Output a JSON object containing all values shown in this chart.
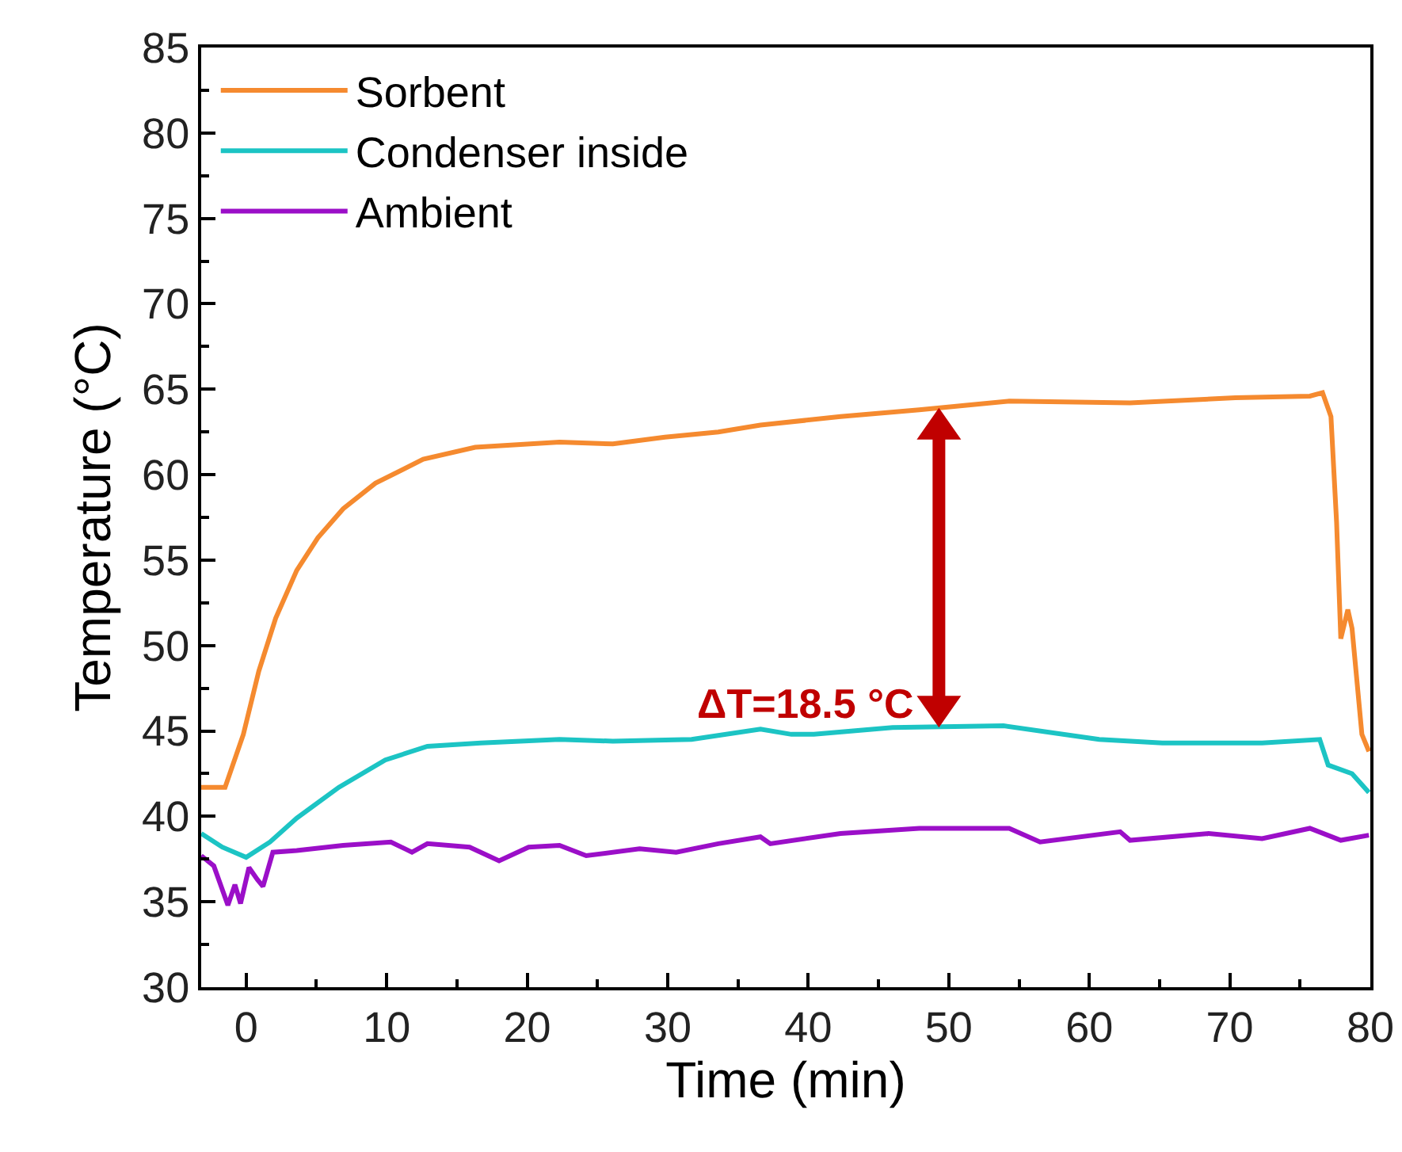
{
  "chart_data": {
    "type": "line",
    "xlabel": "Time (min)",
    "ylabel": "Temperature (°C)",
    "xlim": [
      -3.2,
      80
    ],
    "xticks": [
      0,
      10,
      20,
      30,
      40,
      50,
      60,
      70,
      80
    ],
    "ylim": [
      30,
      85
    ],
    "yticks": [
      30,
      35,
      40,
      45,
      50,
      55,
      60,
      65,
      70,
      75,
      80,
      85
    ],
    "grid": false,
    "legend": "top left",
    "marker": "none",
    "line_style": "solid",
    "annotations": [
      {
        "text": "ΔT=18.5 °C",
        "x": 49.3,
        "y": 45.2
      }
    ],
    "series": [
      {
        "name": "Sorbent",
        "color": "#f58a2f",
        "x": [
          -3.2,
          -1.5,
          -0.2,
          0.9,
          2.1,
          3.6,
          5.1,
          6.9,
          9.2,
          12.6,
          16.3,
          22.3,
          26.1,
          29.8,
          33.6,
          36.6,
          42.3,
          47.9,
          54.3,
          62.9,
          70.4,
          75.7,
          76.6,
          77.2,
          77.6,
          77.9,
          78.4,
          78.7,
          79.4,
          79.9
        ],
        "values": [
          41.7,
          41.7,
          44.8,
          48.5,
          51.6,
          54.4,
          56.3,
          58.0,
          59.5,
          60.9,
          61.6,
          61.9,
          61.8,
          62.2,
          62.5,
          62.9,
          63.4,
          63.8,
          64.3,
          64.2,
          64.5,
          64.6,
          64.8,
          63.4,
          57.2,
          50.4,
          52.1,
          51.0,
          44.8,
          43.8
        ]
      },
      {
        "name": "Condenser inside",
        "color": "#1cc4c4",
        "x": [
          -3.2,
          -1.7,
          0,
          1.7,
          3.6,
          6.6,
          9.9,
          12.9,
          16.7,
          22.3,
          26.1,
          31.7,
          36.6,
          38.8,
          40.4,
          46.0,
          53.9,
          60.7,
          65.2,
          72.3,
          76.4,
          77.0,
          78.7,
          79.9
        ],
        "values": [
          39.0,
          38.2,
          37.6,
          38.5,
          39.9,
          41.7,
          43.3,
          44.1,
          44.3,
          44.5,
          44.4,
          44.5,
          45.1,
          44.8,
          44.8,
          45.2,
          45.3,
          44.5,
          44.3,
          44.3,
          44.5,
          43.0,
          42.5,
          41.4
        ]
      },
      {
        "name": "Ambient",
        "color": "#9b0fc8",
        "x": [
          -3.2,
          -2.3,
          -1.3,
          -0.8,
          -0.4,
          0.2,
          0.8,
          1.2,
          1.9,
          3.6,
          6.9,
          10.3,
          11.8,
          12.9,
          15.9,
          18.0,
          20.1,
          22.3,
          24.2,
          28.0,
          30.6,
          33.6,
          36.6,
          37.3,
          42.3,
          47.9,
          54.3,
          56.5,
          62.2,
          62.9,
          68.5,
          72.3,
          75.7,
          77.9,
          79.9
        ],
        "values": [
          37.7,
          37.1,
          34.8,
          36.0,
          34.9,
          37.0,
          36.3,
          35.9,
          37.9,
          38.0,
          38.3,
          38.5,
          37.9,
          38.4,
          38.2,
          37.4,
          38.2,
          38.3,
          37.7,
          38.1,
          37.9,
          38.4,
          38.8,
          38.4,
          39.0,
          39.3,
          39.3,
          38.5,
          39.1,
          38.6,
          39.0,
          38.7,
          39.3,
          38.6,
          38.9
        ]
      }
    ]
  }
}
